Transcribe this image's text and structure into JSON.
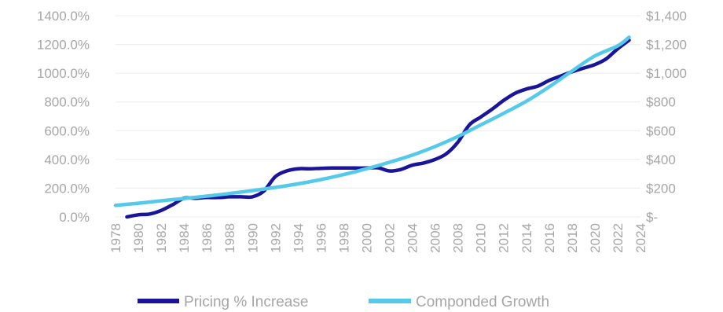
{
  "chart_data": {
    "type": "line",
    "title": "",
    "xlabel": "",
    "ylabel": "",
    "y2label": "",
    "grid": true,
    "legend_position": "bottom",
    "xlim": [
      1978,
      2024
    ],
    "ylim": [
      0,
      1400
    ],
    "y2lim": [
      0,
      1400
    ],
    "x_ticks": [
      "1978",
      "1980",
      "1982",
      "1984",
      "1986",
      "1988",
      "1990",
      "1992",
      "1994",
      "1996",
      "1998",
      "2000",
      "2002",
      "2004",
      "2006",
      "2008",
      "2010",
      "2012",
      "2014",
      "2016",
      "2018",
      "2020",
      "2022",
      "2024"
    ],
    "y_ticks": [
      "0.0%",
      "200.0%",
      "400.0%",
      "600.0%",
      "800.0%",
      "1000.0%",
      "1200.0%",
      "1400.0%"
    ],
    "y2_ticks": [
      "$-",
      "$200",
      "$400",
      "$600",
      "$800",
      "$1,000",
      "$1,200",
      "$1,400"
    ],
    "series": [
      {
        "name": "Pricing % Increase",
        "axis": "left",
        "color": "#1a149b",
        "x": [
          1979,
          1980,
          1981,
          1982,
          1983,
          1984,
          1985,
          1986,
          1987,
          1988,
          1989,
          1990,
          1991,
          1992,
          1993,
          1994,
          1995,
          1996,
          1997,
          1998,
          1999,
          2000,
          2001,
          2002,
          2003,
          2004,
          2005,
          2006,
          2007,
          2008,
          2009,
          2010,
          2011,
          2012,
          2013,
          2014,
          2015,
          2016,
          2017,
          2018,
          2019,
          2020,
          2021,
          2022,
          2023
        ],
        "values": [
          0,
          15,
          20,
          45,
          85,
          130,
          130,
          135,
          135,
          140,
          140,
          140,
          180,
          280,
          320,
          335,
          335,
          338,
          340,
          340,
          340,
          340,
          342,
          320,
          330,
          360,
          375,
          400,
          440,
          520,
          640,
          695,
          750,
          810,
          860,
          890,
          910,
          950,
          980,
          1010,
          1035,
          1060,
          1100,
          1170,
          1230
        ]
      },
      {
        "name": "Componded Growth",
        "axis": "right",
        "color": "#55c9ea",
        "x": [
          1978,
          1980,
          1982,
          1984,
          1986,
          1988,
          1990,
          1992,
          1994,
          1996,
          1998,
          2000,
          2002,
          2004,
          2006,
          2008,
          2010,
          2012,
          2014,
          2016,
          2018,
          2020,
          2022,
          2023
        ],
        "values": [
          80,
          95,
          112,
          128,
          145,
          163,
          183,
          205,
          230,
          260,
          295,
          335,
          380,
          430,
          490,
          560,
          640,
          720,
          805,
          905,
          1015,
          1120,
          1190,
          1250
        ]
      }
    ]
  }
}
